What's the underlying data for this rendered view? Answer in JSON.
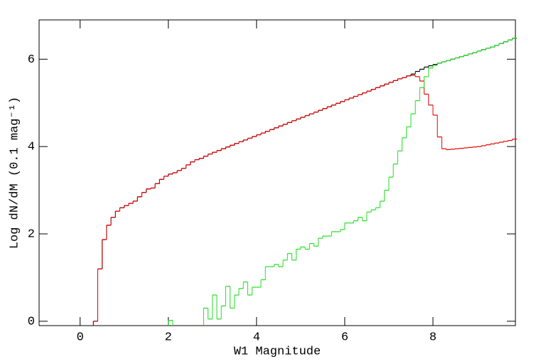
{
  "chart_data": {
    "type": "step-histogram",
    "xlabel": "W1 Magnitude",
    "ylabel": "Log dN/dM (0.1 mag⁻¹)",
    "xlim": [
      -0.93,
      9.87
    ],
    "ylim": [
      -0.1,
      6.9
    ],
    "xticks": [
      0,
      2,
      4,
      6,
      8
    ],
    "yticks": [
      0,
      2,
      4,
      6
    ],
    "bins": [
      0.3,
      0.4,
      0.5,
      0.6,
      0.7,
      0.8,
      0.9,
      1.0,
      1.1,
      1.2,
      1.3,
      1.4,
      1.5,
      1.6,
      1.7,
      1.8,
      1.9,
      2.0,
      2.1,
      2.2,
      2.3,
      2.4,
      2.5,
      2.6,
      2.7,
      2.8,
      2.9,
      3.0,
      3.1,
      3.2,
      3.3,
      3.4,
      3.5,
      3.6,
      3.7,
      3.8,
      3.9,
      4.0,
      4.1,
      4.2,
      4.3,
      4.4,
      4.5,
      4.6,
      4.7,
      4.8,
      4.9,
      5.0,
      5.1,
      5.2,
      5.3,
      5.4,
      5.5,
      5.6,
      5.7,
      5.8,
      5.9,
      6.0,
      6.1,
      6.2,
      6.3,
      6.4,
      6.5,
      6.6,
      6.7,
      6.8,
      6.9,
      7.0,
      7.1,
      7.2,
      7.3,
      7.4,
      7.5,
      7.6,
      7.7,
      7.8,
      7.9,
      8.0,
      8.1,
      8.2,
      8.3,
      8.4,
      8.5,
      8.6,
      8.7,
      8.8,
      8.9,
      9.0,
      9.1,
      9.2,
      9.3,
      9.4,
      9.5,
      9.6,
      9.7,
      9.8,
      9.9
    ],
    "series": [
      {
        "color": "#000000",
        "values": [
          0,
          1.2,
          1.87,
          2.2,
          2.38,
          2.52,
          2.6,
          2.65,
          2.7,
          2.75,
          2.85,
          2.95,
          3.03,
          3.05,
          3.15,
          3.25,
          3.32,
          3.37,
          3.4,
          3.45,
          3.5,
          3.58,
          3.65,
          3.7,
          3.73,
          3.78,
          3.83,
          3.87,
          3.91,
          3.95,
          3.99,
          4.03,
          4.07,
          4.11,
          4.15,
          4.19,
          4.23,
          4.27,
          4.31,
          4.35,
          4.39,
          4.43,
          4.47,
          4.51,
          4.55,
          4.59,
          4.63,
          4.67,
          4.71,
          4.75,
          4.79,
          4.83,
          4.87,
          4.91,
          4.95,
          4.99,
          5.03,
          5.07,
          5.11,
          5.15,
          5.19,
          5.23,
          5.27,
          5.31,
          5.35,
          5.39,
          5.43,
          5.47,
          5.51,
          5.55,
          5.58,
          5.62,
          5.66,
          5.72,
          5.77,
          5.82,
          5.85,
          5.88,
          5.91,
          5.94,
          5.97,
          6.0,
          6.03,
          6.06,
          6.09,
          6.12,
          6.15,
          6.19,
          6.22,
          6.25,
          6.28,
          6.32,
          6.36,
          6.4,
          6.44,
          6.48
        ]
      },
      {
        "color": "#e00000",
        "values": [
          0,
          1.2,
          1.87,
          2.2,
          2.38,
          2.52,
          2.6,
          2.65,
          2.7,
          2.75,
          2.85,
          2.95,
          3.03,
          3.05,
          3.15,
          3.25,
          3.32,
          3.37,
          3.4,
          3.45,
          3.5,
          3.58,
          3.65,
          3.7,
          3.73,
          3.78,
          3.83,
          3.87,
          3.91,
          3.95,
          3.99,
          4.03,
          4.07,
          4.11,
          4.15,
          4.19,
          4.23,
          4.27,
          4.31,
          4.35,
          4.39,
          4.43,
          4.47,
          4.51,
          4.55,
          4.59,
          4.63,
          4.67,
          4.71,
          4.75,
          4.79,
          4.83,
          4.87,
          4.91,
          4.95,
          4.99,
          5.03,
          5.07,
          5.11,
          5.15,
          5.19,
          5.23,
          5.27,
          5.31,
          5.35,
          5.39,
          5.43,
          5.47,
          5.51,
          5.55,
          5.58,
          5.62,
          5.63,
          5.6,
          5.5,
          5.2,
          4.95,
          4.72,
          4.22,
          3.95,
          3.93,
          3.94,
          3.95,
          3.96,
          3.97,
          3.98,
          3.99,
          4.0,
          4.02,
          4.04,
          4.06,
          4.08,
          4.1,
          4.12,
          4.14,
          4.17
        ]
      },
      {
        "color": "#22dd22",
        "values": [
          null,
          null,
          null,
          null,
          null,
          null,
          null,
          null,
          null,
          null,
          null,
          null,
          null,
          null,
          null,
          null,
          null,
          0.02,
          null,
          null,
          null,
          null,
          null,
          null,
          null,
          0.3,
          0.05,
          0.6,
          0.05,
          0.35,
          0.8,
          0.3,
          0.6,
          0.75,
          0.9,
          0.6,
          0.78,
          0.78,
          0.95,
          1.25,
          1.25,
          1.3,
          1.25,
          1.4,
          1.55,
          1.4,
          1.65,
          1.7,
          1.65,
          1.78,
          1.72,
          1.9,
          1.95,
          1.95,
          2.05,
          2.05,
          2.1,
          2.25,
          2.25,
          2.3,
          2.38,
          2.3,
          2.5,
          2.55,
          2.6,
          2.75,
          3.0,
          3.3,
          3.6,
          3.9,
          4.2,
          4.45,
          4.75,
          5.05,
          5.35,
          5.6,
          5.8,
          5.86,
          5.91,
          5.94,
          5.97,
          6.0,
          6.03,
          6.06,
          6.09,
          6.12,
          6.15,
          6.19,
          6.22,
          6.25,
          6.28,
          6.32,
          6.36,
          6.4,
          6.44,
          6.48
        ]
      }
    ]
  }
}
